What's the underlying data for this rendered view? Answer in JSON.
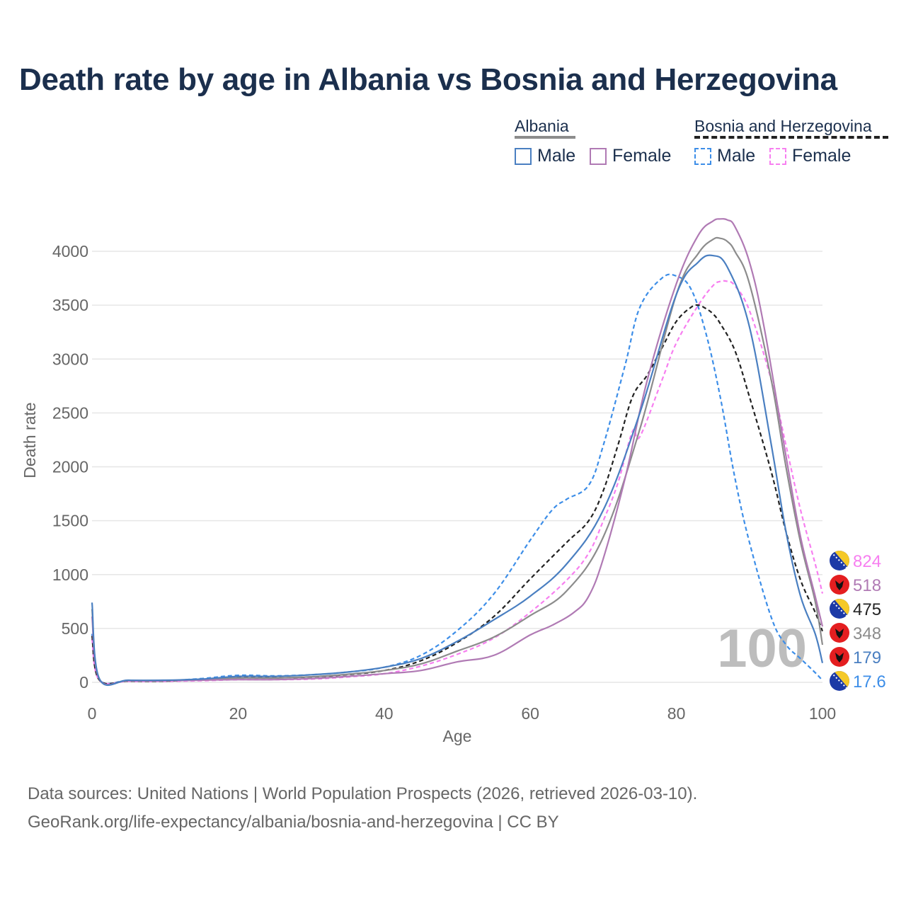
{
  "title": "Death rate by age in Albania vs Bosnia and Herzegovina",
  "legend": {
    "groups": [
      {
        "name": "Albania",
        "line_color": "#8c8c8c",
        "dash": "solid",
        "items": [
          {
            "label": "Male",
            "color": "#4a7fc1"
          },
          {
            "label": "Female",
            "color": "#b07ab4"
          }
        ]
      },
      {
        "name": "Bosnia and Herzegovina",
        "line_color": "#222222",
        "dash": "dashed",
        "items": [
          {
            "label": "Male",
            "color": "#3d8ee8"
          },
          {
            "label": "Female",
            "color": "#f77ff0"
          }
        ]
      }
    ]
  },
  "year_watermark": "100",
  "footer": {
    "line1": "Data sources: United Nations | World Population Prospects (2026, retrieved 2026-03-10).",
    "line2": "GeoRank.org/life-expectancy/albania/bosnia-and-herzegovina | CC BY"
  },
  "end_labels": [
    {
      "text": "824",
      "color": "#f77ff0",
      "flag": "bosnia-flag"
    },
    {
      "text": "518",
      "color": "#b07ab4",
      "flag": "albania-flag"
    },
    {
      "text": "475",
      "color": "#222222",
      "flag": "bosnia-flag"
    },
    {
      "text": "348",
      "color": "#8c8c8c",
      "flag": "albania-flag"
    },
    {
      "text": "179",
      "color": "#4a7fc1",
      "flag": "albania-flag"
    },
    {
      "text": "17.6",
      "color": "#3d8ee8",
      "flag": "bosnia-flag"
    }
  ],
  "chart_data": {
    "type": "line",
    "title": "Death rate by age in Albania vs Bosnia and Herzegovina",
    "xlabel": "Age",
    "ylabel": "Death rate",
    "xlim": [
      0,
      100
    ],
    "ylim": [
      0,
      4300
    ],
    "xticks": [
      0,
      20,
      40,
      60,
      80,
      100
    ],
    "yticks": [
      0,
      500,
      1000,
      1500,
      2000,
      2500,
      3000,
      3500,
      4000
    ],
    "grid": true,
    "series": [
      {
        "name": "Albania Male",
        "color": "#4a7fc1",
        "dash": false,
        "x": [
          0,
          1,
          5,
          10,
          15,
          20,
          25,
          30,
          35,
          40,
          45,
          50,
          55,
          60,
          65,
          70,
          75,
          80,
          83,
          85,
          87,
          90,
          93,
          95,
          97,
          99,
          100
        ],
        "y": [
          740,
          35,
          20,
          20,
          30,
          55,
          55,
          70,
          95,
          140,
          220,
          380,
          580,
          800,
          1100,
          1600,
          2500,
          3600,
          3900,
          3960,
          3850,
          3300,
          2200,
          1400,
          800,
          450,
          179
        ]
      },
      {
        "name": "Albania Female",
        "color": "#b07ab4",
        "dash": false,
        "x": [
          0,
          1,
          5,
          10,
          15,
          20,
          25,
          30,
          35,
          40,
          45,
          50,
          55,
          60,
          63,
          66,
          68,
          70,
          73,
          76,
          80,
          83,
          85,
          86,
          87,
          88,
          90,
          92,
          95,
          97,
          99,
          100
        ],
        "y": [
          610,
          30,
          15,
          15,
          20,
          25,
          25,
          35,
          55,
          80,
          110,
          190,
          250,
          440,
          530,
          650,
          800,
          1150,
          1900,
          2800,
          3700,
          4150,
          4280,
          4300,
          4290,
          4230,
          3900,
          3300,
          2100,
          1350,
          800,
          518
        ]
      },
      {
        "name": "Albania Total",
        "color": "#8c8c8c",
        "dash": false,
        "x": [
          0,
          1,
          5,
          10,
          15,
          20,
          25,
          30,
          35,
          40,
          45,
          50,
          55,
          60,
          65,
          70,
          75,
          80,
          83,
          85,
          86,
          87,
          88,
          90,
          93,
          95,
          97,
          99,
          100
        ],
        "y": [
          680,
          32,
          18,
          18,
          25,
          40,
          40,
          52,
          75,
          110,
          170,
          290,
          420,
          620,
          850,
          1350,
          2350,
          3600,
          3980,
          4110,
          4120,
          4090,
          4000,
          3700,
          2800,
          2000,
          1300,
          750,
          348
        ]
      },
      {
        "name": "Bosnia Male",
        "color": "#3d8ee8",
        "dash": true,
        "x": [
          0,
          1,
          5,
          10,
          15,
          20,
          25,
          30,
          35,
          40,
          45,
          50,
          55,
          60,
          63,
          65,
          68,
          70,
          73,
          75,
          78,
          80,
          82,
          84,
          86,
          88,
          90,
          93,
          95,
          97,
          99,
          100
        ],
        "y": [
          450,
          25,
          15,
          15,
          35,
          65,
          60,
          70,
          95,
          140,
          250,
          480,
          820,
          1320,
          1600,
          1700,
          1830,
          2200,
          2950,
          3480,
          3750,
          3770,
          3650,
          3250,
          2650,
          1900,
          1300,
          600,
          350,
          220,
          90,
          17.6
        ]
      },
      {
        "name": "Bosnia Female",
        "color": "#f77ff0",
        "dash": true,
        "x": [
          0,
          1,
          5,
          10,
          15,
          20,
          25,
          30,
          35,
          40,
          45,
          50,
          55,
          60,
          65,
          68,
          70,
          72,
          74,
          75,
          78,
          80,
          83,
          85,
          86,
          87,
          88,
          90,
          93,
          95,
          97,
          99,
          100
        ],
        "y": [
          400,
          20,
          10,
          10,
          15,
          25,
          25,
          30,
          50,
          80,
          150,
          260,
          410,
          650,
          950,
          1200,
          1500,
          1850,
          2330,
          2280,
          2800,
          3150,
          3500,
          3680,
          3720,
          3720,
          3680,
          3450,
          2800,
          2200,
          1600,
          1100,
          824
        ]
      },
      {
        "name": "Bosnia Total",
        "color": "#222222",
        "dash": true,
        "x": [
          0,
          1,
          5,
          10,
          15,
          20,
          25,
          30,
          35,
          40,
          45,
          50,
          55,
          60,
          65,
          68,
          70,
          72,
          74,
          76,
          78,
          80,
          82,
          83,
          84,
          85,
          86,
          88,
          90,
          93,
          95,
          97,
          99,
          100
        ],
        "y": [
          430,
          22,
          12,
          12,
          25,
          45,
          42,
          50,
          72,
          110,
          200,
          370,
          610,
          960,
          1300,
          1500,
          1780,
          2200,
          2650,
          2850,
          3100,
          3350,
          3480,
          3500,
          3470,
          3420,
          3330,
          3080,
          2650,
          1950,
          1400,
          950,
          650,
          475
        ]
      }
    ]
  }
}
